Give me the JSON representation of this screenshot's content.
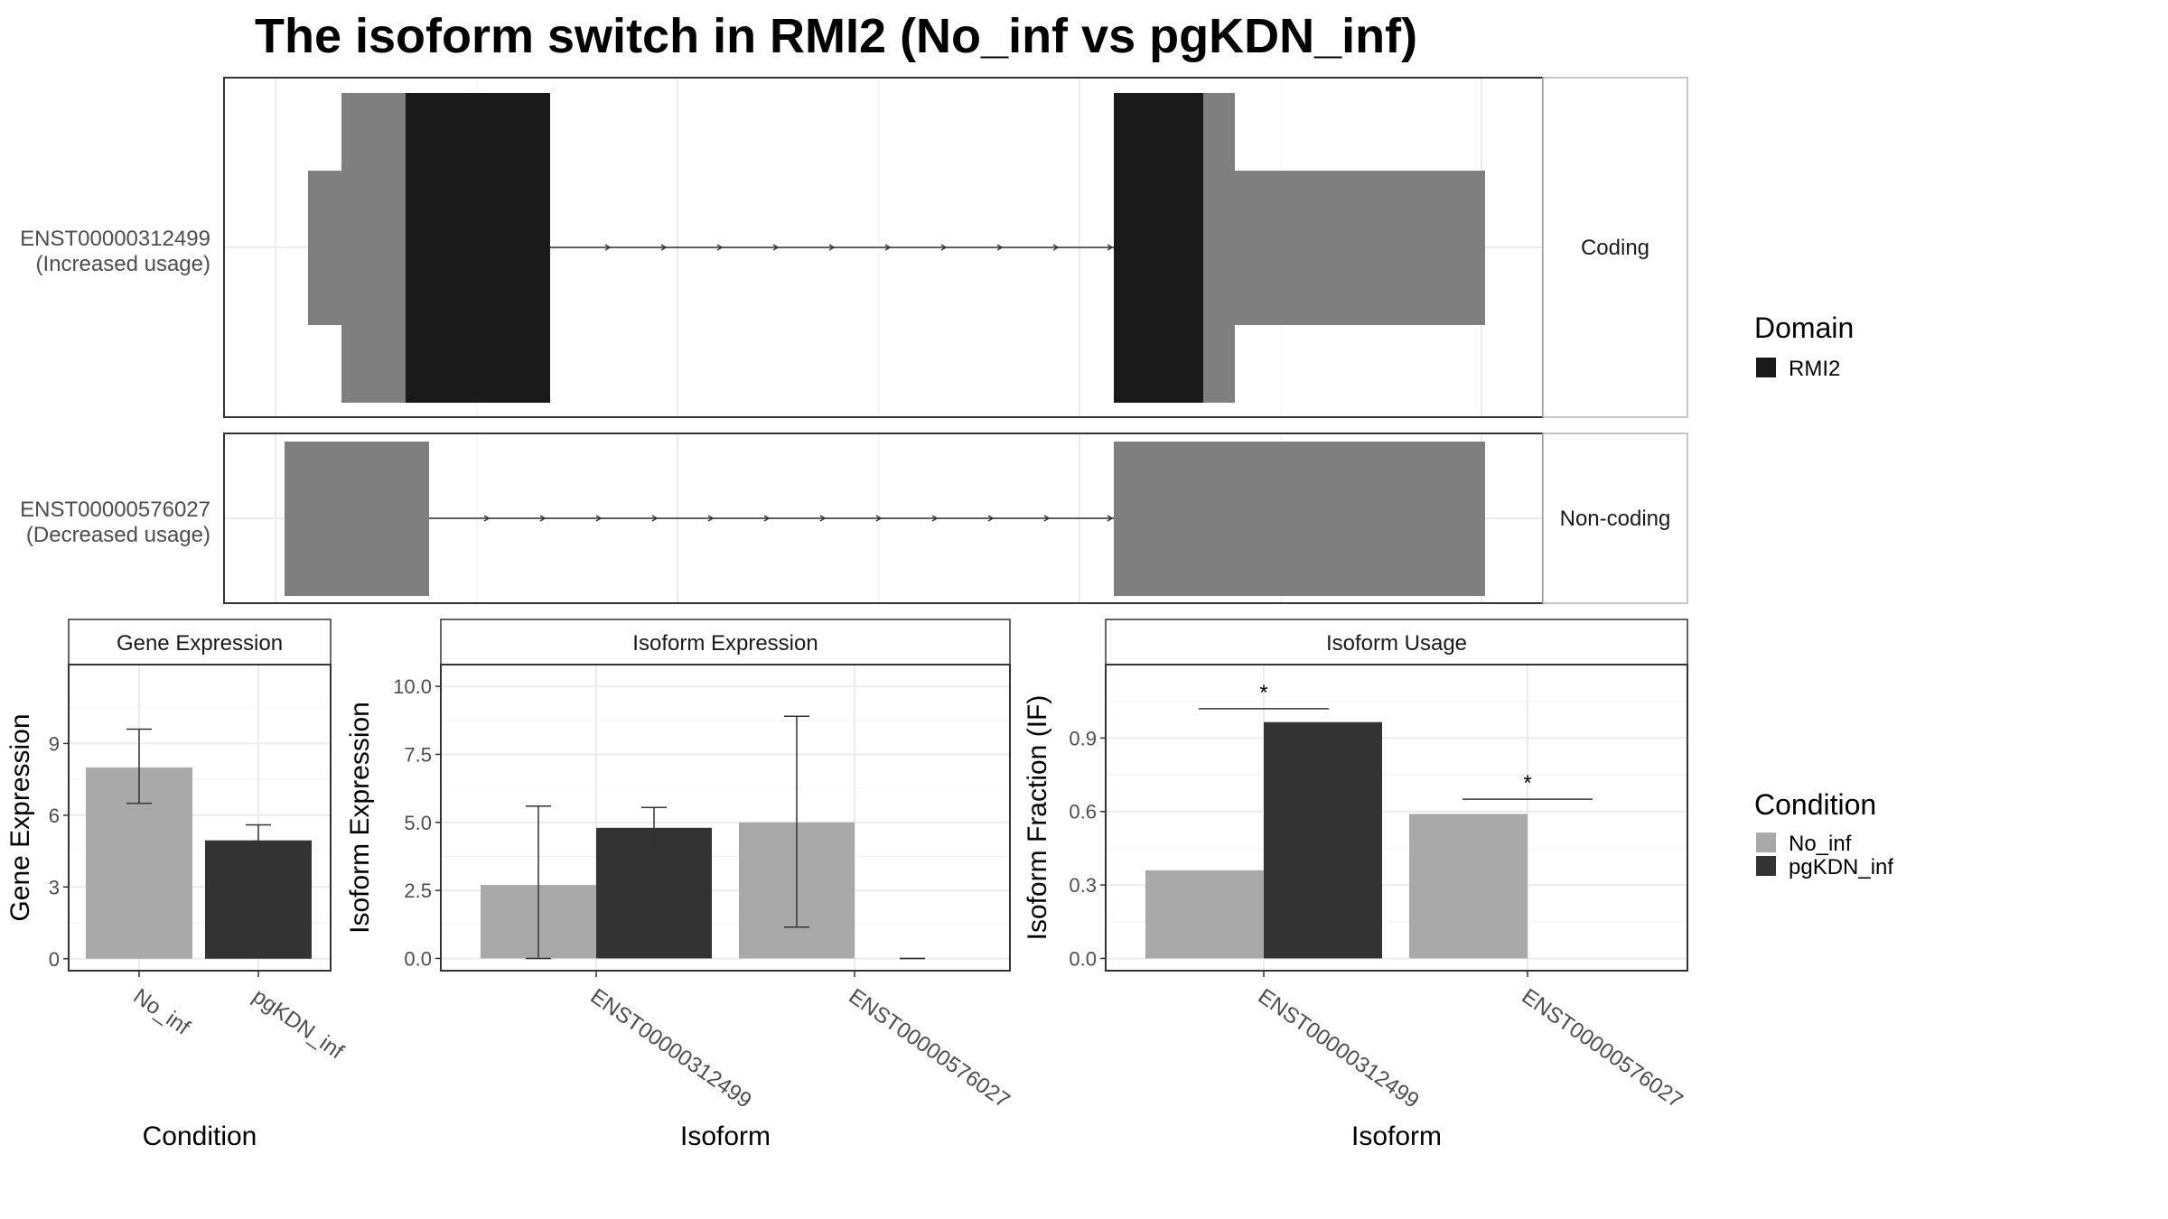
{
  "title": "The isoform switch in RMI2 (No_inf vs pgKDN_inf)",
  "colors": {
    "domain": "#1a1a1a",
    "exon": "#7f7f7f",
    "No_inf": "#a9a9a9",
    "pgKDN_inf": "#333333",
    "grid": "#ebebeb",
    "strip": "#ffffff"
  },
  "structure": {
    "rows": [
      {
        "id": "ENST00000312499",
        "label_id": "ENST00000312499",
        "label_usage": "(Increased usage)",
        "facet": "Coding",
        "coding": true
      },
      {
        "id": "ENST00000576027",
        "label_id": "ENST00000576027",
        "label_usage": "(Decreased usage)",
        "facet": "Non-coding",
        "coding": false
      }
    ]
  },
  "legend_domain": {
    "title": "Domain",
    "items": [
      {
        "label": "RMI2",
        "color": "#1a1a1a"
      }
    ]
  },
  "legend_condition": {
    "title": "Condition",
    "items": [
      {
        "label": "No_inf",
        "color": "#a9a9a9"
      },
      {
        "label": "pgKDN_inf",
        "color": "#333333"
      }
    ]
  },
  "chart_data": [
    {
      "type": "bar",
      "title": "Gene Expression",
      "xlabel": "Condition",
      "ylabel": "Gene Expression",
      "categories": [
        "No_inf",
        "pgKDN_inf"
      ],
      "values": [
        8.0,
        4.95
      ],
      "error_low": [
        6.5,
        4.35
      ],
      "error_high": [
        9.6,
        5.6
      ],
      "ylim": [
        -0.5,
        12.3
      ],
      "yticks": [
        0,
        3,
        6,
        9
      ],
      "ytick_labels": [
        "0",
        "3",
        "6",
        "9"
      ]
    },
    {
      "type": "bar",
      "title": "Isoform Expression",
      "xlabel": "Isoform",
      "ylabel": "Isoform Expression",
      "categories": [
        "ENST00000312499",
        "ENST00000576027"
      ],
      "series": [
        {
          "name": "No_inf",
          "values": [
            2.7,
            5.0
          ],
          "error_low": [
            0.0,
            1.15
          ],
          "error_high": [
            5.6,
            8.9
          ]
        },
        {
          "name": "pgKDN_inf",
          "values": [
            4.8,
            0.0
          ],
          "error_low": [
            4.15,
            0.0
          ],
          "error_high": [
            5.55,
            0.0
          ]
        }
      ],
      "ylim": [
        -0.45,
        10.8
      ],
      "yticks": [
        0.0,
        2.5,
        5.0,
        7.5,
        10.0
      ],
      "ytick_labels": [
        "0.0",
        "2.5",
        "5.0",
        "7.5",
        "10.0"
      ]
    },
    {
      "type": "bar",
      "title": "Isoform Usage",
      "xlabel": "Isoform",
      "ylabel": "Isoform Fraction (IF)",
      "categories": [
        "ENST00000312499",
        "ENST00000576027"
      ],
      "series": [
        {
          "name": "No_inf",
          "values": [
            0.36,
            0.59
          ]
        },
        {
          "name": "pgKDN_inf",
          "values": [
            0.965,
            0.0
          ]
        }
      ],
      "significance": [
        {
          "label": "*",
          "y": 1.02
        },
        {
          "label": "*",
          "y": 0.65
        }
      ],
      "ylim": [
        -0.05,
        1.2
      ],
      "yticks": [
        0.0,
        0.3,
        0.6,
        0.9
      ],
      "ytick_labels": [
        "0.0",
        "0.3",
        "0.6",
        "0.9"
      ]
    }
  ]
}
